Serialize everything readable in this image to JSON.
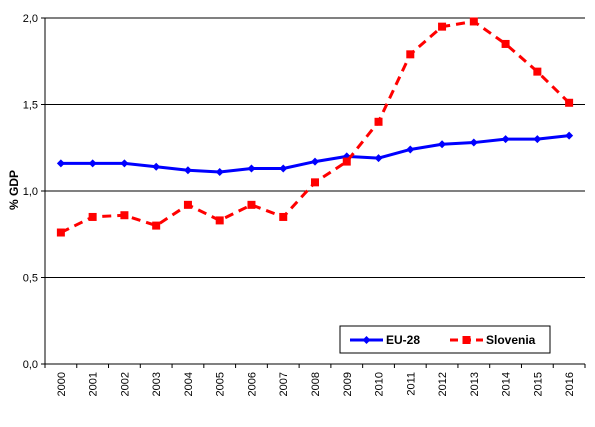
{
  "chart_data": {
    "type": "line",
    "ylabel": "% GDP",
    "ylim": [
      0,
      2
    ],
    "yticks": [
      "0,0",
      "0,5",
      "1,0",
      "1,5",
      "2,0"
    ],
    "ytick_values": [
      0,
      0.5,
      1.0,
      1.5,
      2.0
    ],
    "categories": [
      "2000",
      "2001",
      "2002",
      "2003",
      "2004",
      "2005",
      "2006",
      "2007",
      "2008",
      "2009",
      "2010",
      "2011",
      "2012",
      "2013",
      "2014",
      "2015",
      "2016"
    ],
    "grid": "horizontal",
    "legend_position": "bottom-right",
    "series": [
      {
        "name": "EU-28",
        "color": "#0000ff",
        "line_style": "solid",
        "marker": "diamond",
        "values": [
          1.16,
          1.16,
          1.16,
          1.14,
          1.12,
          1.11,
          1.13,
          1.13,
          1.17,
          1.2,
          1.19,
          1.24,
          1.27,
          1.28,
          1.3,
          1.3,
          1.32
        ]
      },
      {
        "name": "Slovenia",
        "color": "#ff0000",
        "line_style": "dashed",
        "marker": "square",
        "values": [
          0.76,
          0.85,
          0.86,
          0.8,
          0.92,
          0.83,
          0.92,
          0.85,
          1.05,
          1.17,
          1.4,
          1.79,
          1.95,
          1.98,
          1.85,
          1.69,
          1.51
        ]
      }
    ]
  }
}
